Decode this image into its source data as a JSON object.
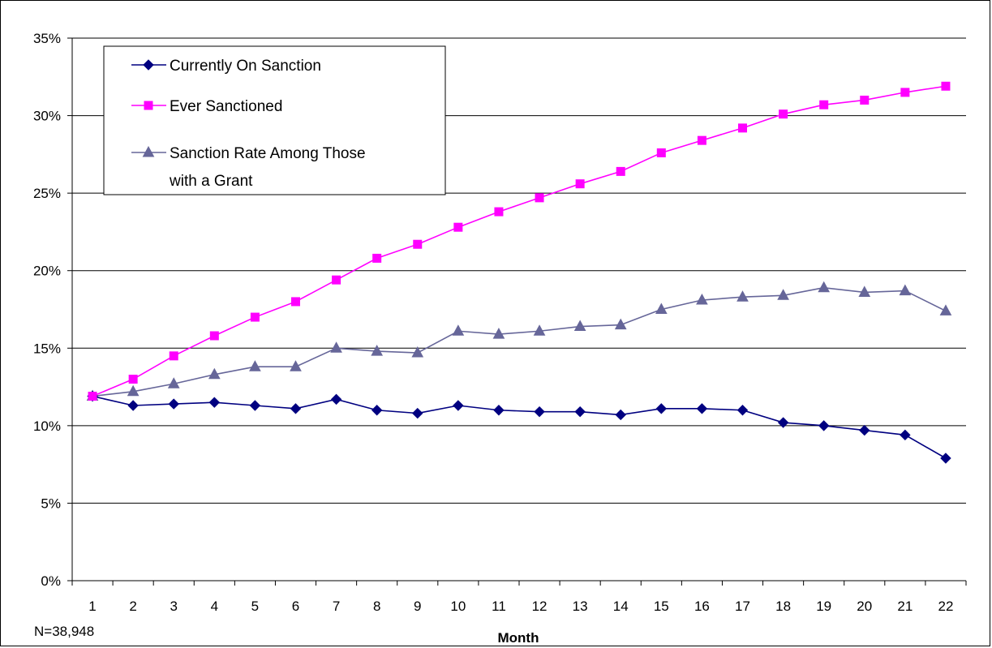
{
  "chart_data": {
    "type": "line",
    "title": "",
    "xlabel": "Month",
    "ylabel": "",
    "note": "N=38,948",
    "categories": [
      "1",
      "2",
      "3",
      "4",
      "5",
      "6",
      "7",
      "8",
      "9",
      "10",
      "11",
      "12",
      "13",
      "14",
      "15",
      "16",
      "17",
      "18",
      "19",
      "20",
      "21",
      "22"
    ],
    "ylim": [
      0,
      35
    ],
    "yticks": [
      0,
      5,
      10,
      15,
      20,
      25,
      30,
      35
    ],
    "ytick_labels": [
      "0%",
      "5%",
      "10%",
      "15%",
      "20%",
      "25%",
      "30%",
      "35%"
    ],
    "grid": true,
    "legend_position": "top-left",
    "series": [
      {
        "name": "Currently On Sanction",
        "color": "#000080",
        "marker": "diamond",
        "values": [
          11.9,
          11.3,
          11.4,
          11.5,
          11.3,
          11.1,
          11.7,
          11.0,
          10.8,
          11.3,
          11.0,
          10.9,
          10.9,
          10.7,
          11.1,
          11.1,
          11.0,
          10.2,
          10.0,
          9.7,
          9.4,
          7.9
        ]
      },
      {
        "name": "Ever Sanctioned",
        "color": "#FF00FF",
        "marker": "square",
        "values": [
          11.9,
          13.0,
          14.5,
          15.8,
          17.0,
          18.0,
          19.4,
          20.8,
          21.7,
          22.8,
          23.8,
          24.7,
          25.6,
          26.4,
          27.6,
          28.4,
          29.2,
          30.1,
          30.7,
          31.0,
          31.5,
          31.9
        ]
      },
      {
        "name": "Sanction Rate Among Those with a Grant",
        "name_lines": [
          "Sanction Rate Among Those",
          "with a Grant"
        ],
        "color": "#666699",
        "marker": "triangle",
        "values": [
          11.9,
          12.2,
          12.7,
          13.3,
          13.8,
          13.8,
          15.0,
          14.8,
          14.7,
          16.1,
          15.9,
          16.1,
          16.4,
          16.5,
          17.5,
          18.1,
          18.3,
          18.4,
          18.9,
          18.6,
          18.7,
          17.4
        ]
      }
    ]
  }
}
